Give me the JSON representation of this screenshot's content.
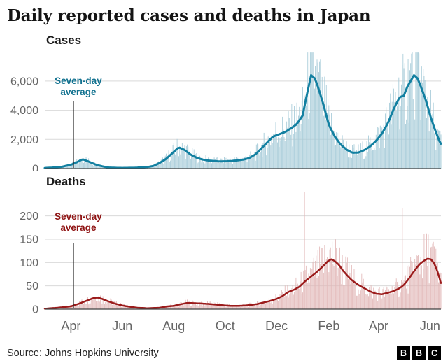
{
  "title": "Daily reported cases and deaths in Japan",
  "footer": {
    "source": "Source: Johns Hopkins University",
    "logo_letters": [
      "B",
      "B",
      "C"
    ]
  },
  "x_axis": {
    "days_total": 470,
    "ticks": [
      {
        "day": 31,
        "label": "Apr"
      },
      {
        "day": 92,
        "label": "Jun"
      },
      {
        "day": 153,
        "label": "Aug"
      },
      {
        "day": 214,
        "label": "Oct"
      },
      {
        "day": 275,
        "label": "Dec"
      },
      {
        "day": 337,
        "label": "Feb"
      },
      {
        "day": 396,
        "label": "Apr"
      },
      {
        "day": 457,
        "label": "Jun"
      }
    ]
  },
  "chart_data": [
    {
      "type": "bar",
      "title": "Cases",
      "description": "Daily reported cases (bars) with seven-day average (line)",
      "ylim": [
        0,
        8200
      ],
      "yticks": [
        0,
        2000,
        4000,
        6000
      ],
      "ytick_labels": [
        "0",
        "2,000",
        "4,000",
        "6,000"
      ],
      "bar_color": "#a6cbd8",
      "line_color": "#1380a1",
      "annotation": {
        "label": "Seven-day average",
        "label_lines": [
          "Seven-day",
          "average"
        ],
        "color": "#11718f",
        "x_day": 34
      },
      "avg_points": [
        [
          0,
          40
        ],
        [
          10,
          70
        ],
        [
          20,
          120
        ],
        [
          31,
          260
        ],
        [
          38,
          430
        ],
        [
          45,
          640
        ],
        [
          52,
          480
        ],
        [
          61,
          260
        ],
        [
          68,
          160
        ],
        [
          75,
          75
        ],
        [
          85,
          50
        ],
        [
          92,
          45
        ],
        [
          106,
          55
        ],
        [
          122,
          110
        ],
        [
          129,
          180
        ],
        [
          136,
          380
        ],
        [
          143,
          620
        ],
        [
          150,
          980
        ],
        [
          156,
          1300
        ],
        [
          159,
          1450
        ],
        [
          166,
          1270
        ],
        [
          173,
          960
        ],
        [
          180,
          750
        ],
        [
          187,
          620
        ],
        [
          194,
          550
        ],
        [
          201,
          520
        ],
        [
          207,
          490
        ],
        [
          214,
          500
        ],
        [
          221,
          520
        ],
        [
          229,
          560
        ],
        [
          236,
          620
        ],
        [
          243,
          730
        ],
        [
          250,
          980
        ],
        [
          257,
          1380
        ],
        [
          264,
          1800
        ],
        [
          271,
          2200
        ],
        [
          278,
          2350
        ],
        [
          285,
          2500
        ],
        [
          292,
          2750
        ],
        [
          299,
          3050
        ],
        [
          306,
          3650
        ],
        [
          310,
          4800
        ],
        [
          316,
          6400
        ],
        [
          320,
          6200
        ],
        [
          323,
          5800
        ],
        [
          330,
          4500
        ],
        [
          337,
          3000
        ],
        [
          344,
          2200
        ],
        [
          351,
          1650
        ],
        [
          358,
          1300
        ],
        [
          365,
          1080
        ],
        [
          372,
          1100
        ],
        [
          379,
          1260
        ],
        [
          386,
          1520
        ],
        [
          393,
          1900
        ],
        [
          400,
          2400
        ],
        [
          407,
          3100
        ],
        [
          414,
          4100
        ],
        [
          421,
          4900
        ],
        [
          426,
          5000
        ],
        [
          430,
          5600
        ],
        [
          438,
          6400
        ],
        [
          442,
          6200
        ],
        [
          445,
          5800
        ],
        [
          452,
          4700
        ],
        [
          459,
          3300
        ],
        [
          464,
          2500
        ],
        [
          468,
          1900
        ],
        [
          470,
          1700
        ]
      ],
      "spikes": []
    },
    {
      "type": "bar",
      "title": "Deaths",
      "description": "Daily reported deaths (bars) with seven-day average (line)",
      "ylim": [
        0,
        255
      ],
      "yticks": [
        0,
        50,
        100,
        150,
        200
      ],
      "ytick_labels": [
        "0",
        "50",
        "100",
        "150",
        "200"
      ],
      "bar_color": "#e2b8b8",
      "line_color": "#9b1b1b",
      "annotation": {
        "label": "Seven-day average",
        "label_lines": [
          "Seven-day",
          "average"
        ],
        "color": "#8f1414",
        "x_day": 34
      },
      "avg_points": [
        [
          0,
          1
        ],
        [
          15,
          3
        ],
        [
          31,
          6
        ],
        [
          41,
          12
        ],
        [
          51,
          19
        ],
        [
          58,
          24
        ],
        [
          63,
          25
        ],
        [
          68,
          22
        ],
        [
          75,
          17
        ],
        [
          85,
          11
        ],
        [
          92,
          8
        ],
        [
          101,
          5
        ],
        [
          110,
          3
        ],
        [
          122,
          2
        ],
        [
          136,
          3
        ],
        [
          146,
          6
        ],
        [
          153,
          7
        ],
        [
          160,
          10
        ],
        [
          168,
          13
        ],
        [
          175,
          13
        ],
        [
          187,
          12
        ],
        [
          196,
          11
        ],
        [
          207,
          9
        ],
        [
          214,
          8
        ],
        [
          221,
          7
        ],
        [
          229,
          7
        ],
        [
          238,
          8
        ],
        [
          245,
          9
        ],
        [
          252,
          11
        ],
        [
          259,
          14
        ],
        [
          266,
          17
        ],
        [
          275,
          22
        ],
        [
          282,
          28
        ],
        [
          289,
          37
        ],
        [
          296,
          42
        ],
        [
          302,
          48
        ],
        [
          309,
          60
        ],
        [
          316,
          70
        ],
        [
          323,
          80
        ],
        [
          330,
          92
        ],
        [
          336,
          103
        ],
        [
          340,
          107
        ],
        [
          344,
          103
        ],
        [
          349,
          95
        ],
        [
          354,
          82
        ],
        [
          360,
          70
        ],
        [
          365,
          61
        ],
        [
          372,
          52
        ],
        [
          379,
          45
        ],
        [
          386,
          38
        ],
        [
          393,
          33
        ],
        [
          400,
          32
        ],
        [
          407,
          35
        ],
        [
          414,
          39
        ],
        [
          421,
          45
        ],
        [
          426,
          52
        ],
        [
          431,
          63
        ],
        [
          436,
          76
        ],
        [
          440,
          86
        ],
        [
          445,
          97
        ],
        [
          450,
          104
        ],
        [
          454,
          108
        ],
        [
          458,
          107
        ],
        [
          462,
          98
        ],
        [
          466,
          80
        ],
        [
          470,
          56
        ]
      ],
      "spikes": [
        {
          "day": 308,
          "value": 252
        },
        {
          "day": 424,
          "value": 216
        }
      ]
    }
  ]
}
